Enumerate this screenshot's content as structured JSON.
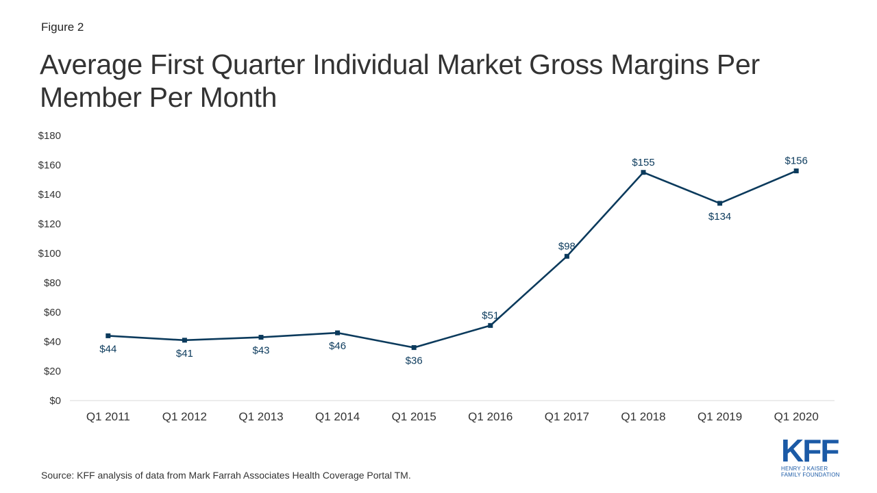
{
  "figure_label": "Figure 2",
  "title": "Average First Quarter Individual Market Gross Margins Per Member Per Month",
  "source": "Source: KFF analysis of data from Mark Farrah Associates Health Coverage Portal TM.",
  "logo": {
    "letters": "KFF",
    "line1": "HENRY J KAISER",
    "line2": "FAMILY FOUNDATION"
  },
  "colors": {
    "line": "#0b3a5c",
    "axis": "#d9d9d9",
    "text": "#333333",
    "logo": "#1b5aa6"
  },
  "chart_data": {
    "type": "line",
    "categories": [
      "Q1 2011",
      "Q1 2012",
      "Q1 2013",
      "Q1 2014",
      "Q1 2015",
      "Q1 2016",
      "Q1 2017",
      "Q1 2018",
      "Q1 2019",
      "Q1 2020"
    ],
    "values": [
      44,
      41,
      43,
      46,
      36,
      51,
      98,
      155,
      134,
      156
    ],
    "data_labels": [
      "$44",
      "$41",
      "$43",
      "$46",
      "$36",
      "$51",
      "$98",
      "$155",
      "$134",
      "$156"
    ],
    "label_positions": [
      "below",
      "below",
      "below",
      "below",
      "below",
      "above",
      "above",
      "above",
      "below",
      "above"
    ],
    "y_ticks": [
      "$0",
      "$20",
      "$40",
      "$60",
      "$80",
      "$100",
      "$120",
      "$140",
      "$160",
      "$180"
    ],
    "ylim": [
      0,
      180
    ],
    "xlabel": "",
    "ylabel": "",
    "grid": false,
    "legend": "none"
  }
}
